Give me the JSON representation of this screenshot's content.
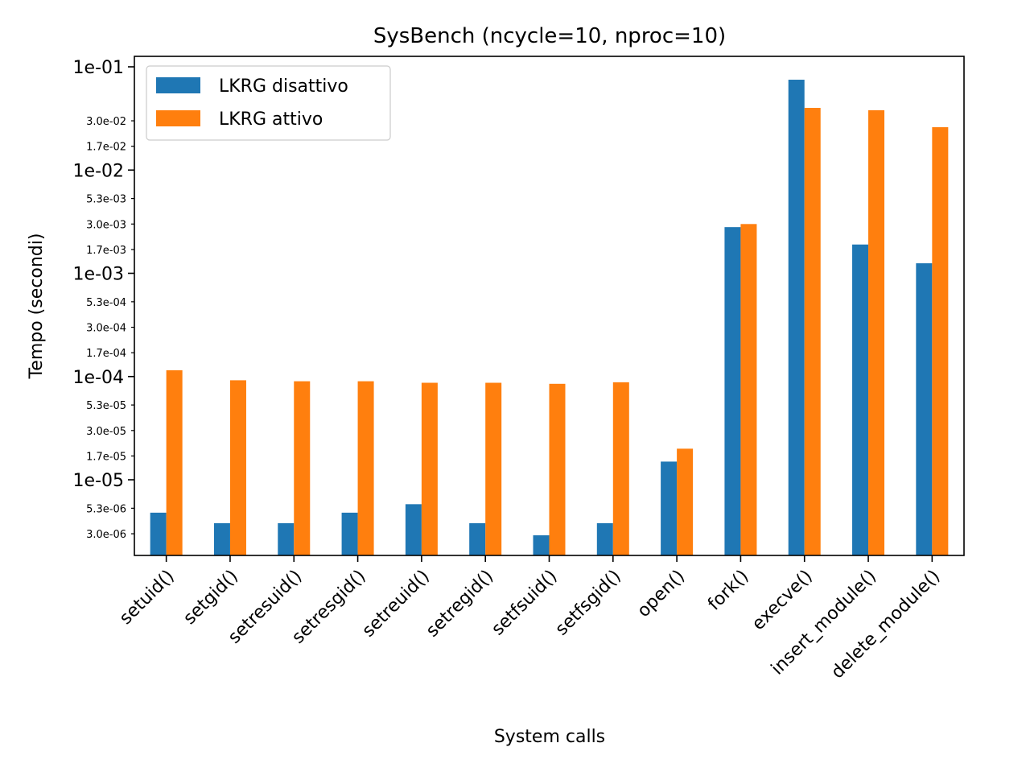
{
  "chart_data": {
    "type": "bar",
    "title": "SysBench (ncycle=10, nproc=10)",
    "xlabel": "System calls",
    "ylabel": "Tempo (secondi)",
    "yscale": "log",
    "ylim": [
      2.1e-06,
      0.13
    ],
    "grid": false,
    "legend_position": "top-left",
    "categories": [
      "setuid()",
      "setgid()",
      "setresuid()",
      "setresgid()",
      "setreuid()",
      "setregid()",
      "setfsuid()",
      "setfsgid()",
      "open()",
      "fork()",
      "execve()",
      "insert_module()",
      "delete_module()"
    ],
    "series": [
      {
        "name": "LKRG disattivo",
        "color": "#1f77b4",
        "values": [
          4.8e-06,
          3.8e-06,
          3.8e-06,
          4.8e-06,
          5.8e-06,
          3.8e-06,
          2.9e-06,
          3.8e-06,
          1.5e-05,
          0.0028,
          0.075,
          0.0019,
          0.00125
        ]
      },
      {
        "name": "LKRG attivo",
        "color": "#ff7f0e",
        "values": [
          0.000115,
          9.2e-05,
          9e-05,
          9e-05,
          8.7e-05,
          8.7e-05,
          8.5e-05,
          8.8e-05,
          2e-05,
          0.003,
          0.04,
          0.038,
          0.026
        ]
      }
    ],
    "major_ticks": [
      {
        "value": 0.1,
        "label": "1e-01"
      },
      {
        "value": 0.01,
        "label": "1e-02"
      },
      {
        "value": 0.001,
        "label": "1e-03"
      },
      {
        "value": 0.0001,
        "label": "1e-04"
      },
      {
        "value": 1e-05,
        "label": "1e-05"
      }
    ],
    "minor_ticks": [
      {
        "value": 0.03,
        "label": "3.0e-02"
      },
      {
        "value": 0.017,
        "label": "1.7e-02"
      },
      {
        "value": 0.0053,
        "label": "5.3e-03"
      },
      {
        "value": 0.003,
        "label": "3.0e-03"
      },
      {
        "value": 0.0017,
        "label": "1.7e-03"
      },
      {
        "value": 0.00053,
        "label": "5.3e-04"
      },
      {
        "value": 0.0003,
        "label": "3.0e-04"
      },
      {
        "value": 0.00017,
        "label": "1.7e-04"
      },
      {
        "value": 5.3e-05,
        "label": "5.3e-05"
      },
      {
        "value": 3e-05,
        "label": "3.0e-05"
      },
      {
        "value": 1.7e-05,
        "label": "1.7e-05"
      },
      {
        "value": 5.3e-06,
        "label": "5.3e-06"
      },
      {
        "value": 3e-06,
        "label": "3.0e-06"
      }
    ]
  }
}
